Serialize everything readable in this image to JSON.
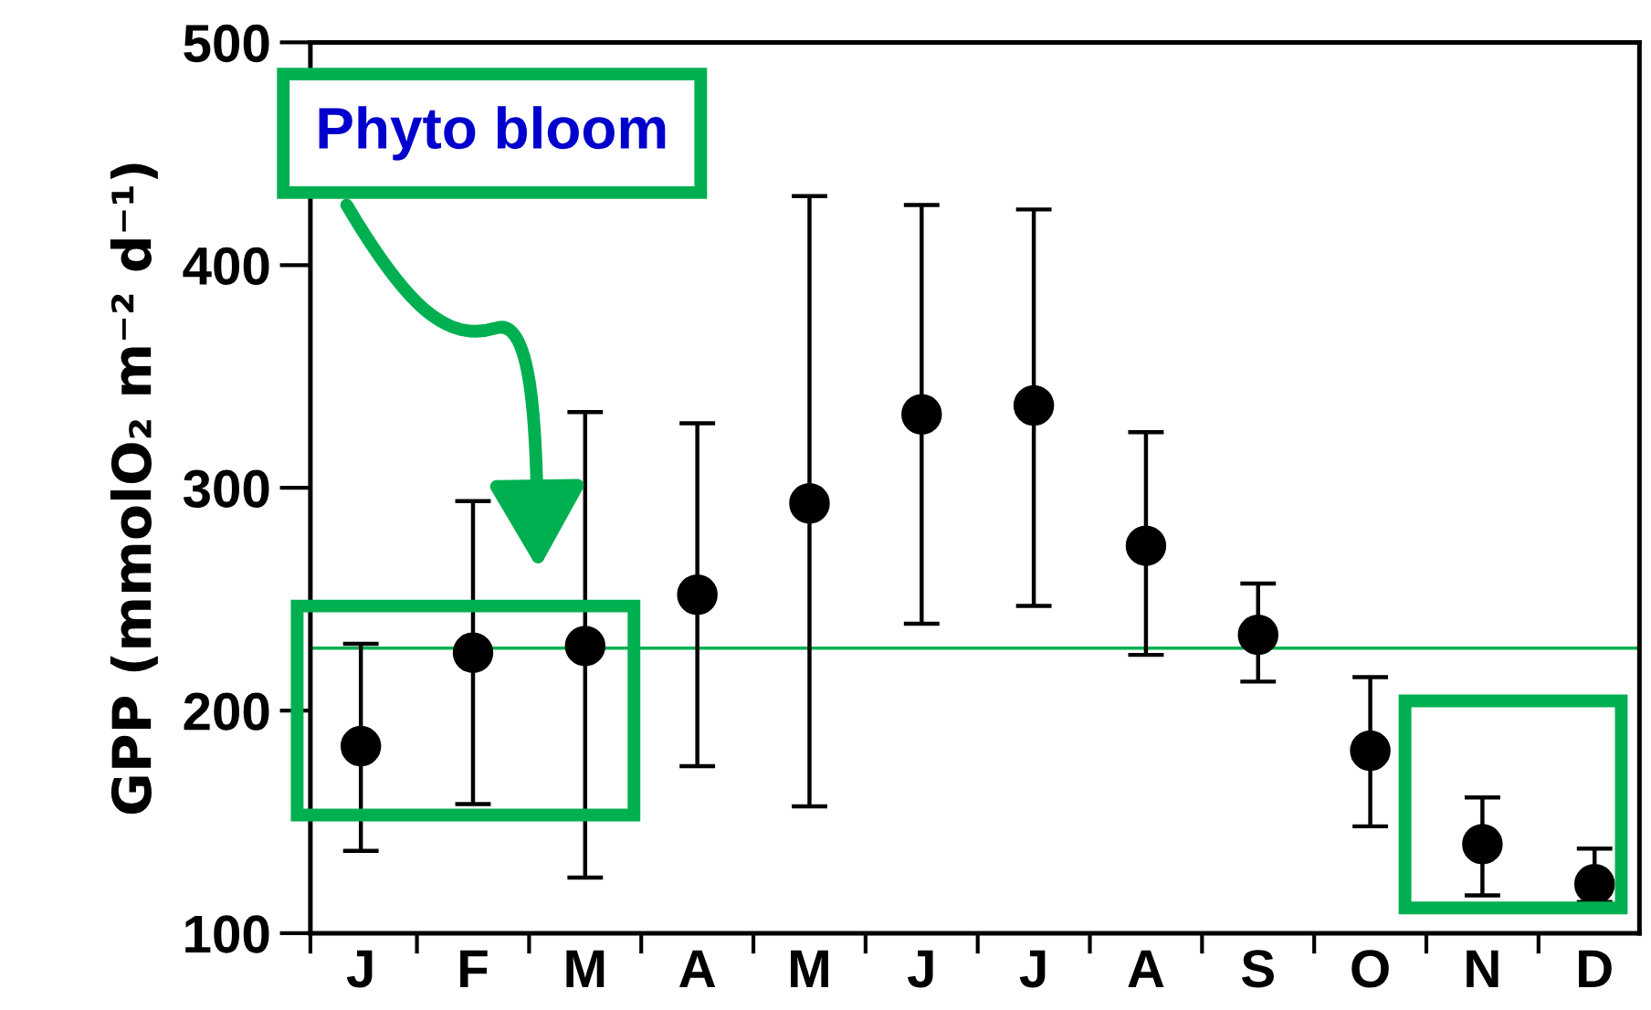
{
  "chart_data": {
    "type": "scatter",
    "ylabel": "GPP (mmolO₂ m⁻² d⁻¹)",
    "categories": [
      "J",
      "F",
      "M",
      "A",
      "M",
      "J",
      "J",
      "A",
      "S",
      "O",
      "N",
      "D"
    ],
    "values": [
      184,
      226,
      229,
      252,
      293,
      333,
      337,
      274,
      234,
      182,
      140,
      122
    ],
    "errors": [
      [
        137,
        230
      ],
      [
        158,
        294
      ],
      [
        125,
        334
      ],
      [
        175,
        329
      ],
      [
        157,
        431
      ],
      [
        239,
        427
      ],
      [
        247,
        425
      ],
      [
        225,
        325
      ],
      [
        213,
        257
      ],
      [
        148,
        215
      ],
      [
        117,
        161
      ],
      [
        114,
        138
      ]
    ],
    "color": "#000000",
    "marker": "circle",
    "ylim": [
      100,
      500
    ],
    "yticks": [
      100,
      200,
      300,
      400,
      500
    ],
    "ref_lines": [
      {
        "axis": "y",
        "value": 228,
        "color": "#00b050"
      }
    ],
    "annotations": [
      "Phyto bloom"
    ],
    "grid": false,
    "legend": false
  }
}
